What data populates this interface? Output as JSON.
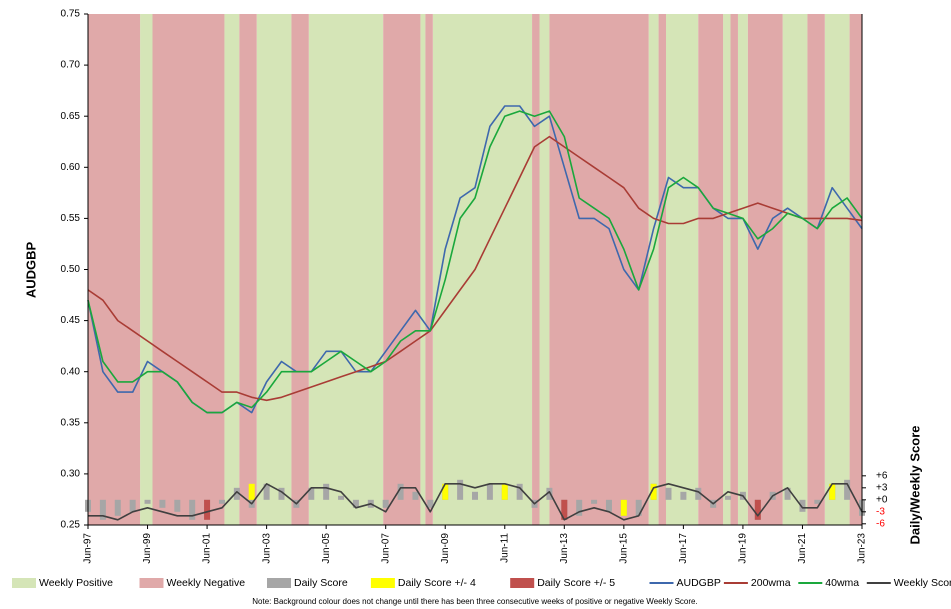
{
  "chart_data": {
    "type": "line",
    "y_label": "AUDGBP",
    "y2_label": "Daily/Weekly Score",
    "note": "Note: Background colour does not change until there has been three consecutive weeks of positive or negative Weekly Score.",
    "xlim": [
      "1997-06",
      "2023-06"
    ],
    "xticks": [
      {
        "value": "1997-06",
        "label": "Jun-97"
      },
      {
        "value": "1999-06",
        "label": "Jun-99"
      },
      {
        "value": "2001-06",
        "label": "Jun-01"
      },
      {
        "value": "2003-06",
        "label": "Jun-03"
      },
      {
        "value": "2005-06",
        "label": "Jun-05"
      },
      {
        "value": "2007-06",
        "label": "Jun-07"
      },
      {
        "value": "2009-06",
        "label": "Jun-09"
      },
      {
        "value": "2011-06",
        "label": "Jun-11"
      },
      {
        "value": "2013-06",
        "label": "Jun-13"
      },
      {
        "value": "2015-06",
        "label": "Jun-15"
      },
      {
        "value": "2017-06",
        "label": "Jun-17"
      },
      {
        "value": "2019-06",
        "label": "Jun-19"
      },
      {
        "value": "2021-06",
        "label": "Jun-21"
      },
      {
        "value": "2023-06",
        "label": "Jun-23"
      }
    ],
    "ylim": [
      0.25,
      0.75
    ],
    "yticks": [
      0.25,
      {
        "value": 0.3,
        "label": "0.30"
      },
      0.35,
      {
        "value": 0.4,
        "label": "0.40"
      },
      0.45,
      {
        "value": 0.5,
        "label": "0.50"
      },
      0.55,
      {
        "value": 0.6,
        "label": "0.60"
      },
      0.65,
      {
        "value": 0.7,
        "label": "0.70"
      },
      0.75
    ],
    "y2lim": [
      -6.3,
      121.5
    ],
    "y2ticks": [
      {
        "value": 6,
        "label": "+6"
      },
      {
        "value": 3,
        "label": "+3"
      },
      {
        "value": 0,
        "label": "+0"
      },
      -3,
      -6
    ],
    "y2_negative_color": "#ff0000",
    "grid": false,
    "bands": [
      {
        "name": "Weekly Positive",
        "color": "#d5e5b7",
        "ranges": [
          [
            "1999-03",
            "1999-08"
          ],
          [
            "2002-01",
            "2002-07"
          ],
          [
            "2003-02",
            "2004-04"
          ],
          [
            "2004-11",
            "2007-05"
          ],
          [
            "2008-08",
            "2008-10"
          ],
          [
            "2009-01",
            "2012-05"
          ],
          [
            "2012-08",
            "2012-12"
          ],
          [
            "2016-04",
            "2016-08"
          ],
          [
            "2016-11",
            "2017-12"
          ],
          [
            "2018-10",
            "2019-01"
          ],
          [
            "2019-04",
            "2019-08"
          ],
          [
            "2020-10",
            "2021-08"
          ],
          [
            "2022-03",
            "2023-01"
          ]
        ]
      },
      {
        "name": "Weekly Negative",
        "color": "#e0a9a9",
        "ranges": [
          [
            "1997-06",
            "1999-03"
          ],
          [
            "1999-08",
            "2002-01"
          ],
          [
            "2002-07",
            "2003-02"
          ],
          [
            "2004-04",
            "2004-11"
          ],
          [
            "2007-05",
            "2008-08"
          ],
          [
            "2008-10",
            "2009-01"
          ],
          [
            "2012-05",
            "2012-08"
          ],
          [
            "2012-12",
            "2016-04"
          ],
          [
            "2016-08",
            "2016-11"
          ],
          [
            "2017-12",
            "2018-10"
          ],
          [
            "2019-01",
            "2019-04"
          ],
          [
            "2019-08",
            "2020-10"
          ],
          [
            "2021-08",
            "2022-03"
          ],
          [
            "2023-01",
            "2023-06"
          ]
        ]
      }
    ],
    "x": [
      "1997-06",
      "1997-12",
      "1998-06",
      "1998-12",
      "1999-06",
      "1999-12",
      "2000-06",
      "2000-12",
      "2001-06",
      "2001-12",
      "2002-06",
      "2002-12",
      "2003-06",
      "2003-12",
      "2004-06",
      "2004-12",
      "2005-06",
      "2005-12",
      "2006-06",
      "2006-12",
      "2007-06",
      "2007-12",
      "2008-06",
      "2008-12",
      "2009-06",
      "2009-12",
      "2010-06",
      "2010-12",
      "2011-06",
      "2011-12",
      "2012-06",
      "2012-12",
      "2013-06",
      "2013-12",
      "2014-06",
      "2014-12",
      "2015-06",
      "2015-12",
      "2016-06",
      "2016-12",
      "2017-06",
      "2017-12",
      "2018-06",
      "2018-12",
      "2019-06",
      "2019-12",
      "2020-06",
      "2020-12",
      "2021-06",
      "2021-12",
      "2022-06",
      "2022-12",
      "2023-06"
    ],
    "series": [
      {
        "name": "Daily Score",
        "kind": "bar",
        "axis": "y2",
        "color": "#a6a6a6",
        "values": [
          -3,
          -5,
          -4,
          -3,
          -1,
          -2,
          -3,
          -5,
          -4,
          -1,
          3,
          -2,
          4,
          3,
          -2,
          3,
          4,
          1,
          -2,
          -2,
          -2,
          4,
          2,
          -2,
          4,
          5,
          2,
          4,
          3,
          4,
          -2,
          3,
          -5,
          -4,
          -1,
          -3,
          -4,
          -4,
          4,
          3,
          2,
          3,
          -2,
          1,
          2,
          -5,
          2,
          3,
          -3,
          -1,
          4,
          5,
          -4
        ]
      },
      {
        "name": "Daily Score +/- 4",
        "kind": "bar",
        "axis": "y2",
        "color": "#ffff00",
        "values": [
          null,
          null,
          null,
          null,
          null,
          null,
          null,
          null,
          null,
          null,
          null,
          4,
          null,
          null,
          null,
          null,
          null,
          null,
          null,
          null,
          null,
          null,
          null,
          null,
          4,
          null,
          null,
          null,
          4,
          null,
          null,
          null,
          null,
          null,
          null,
          null,
          -4,
          null,
          4,
          null,
          null,
          null,
          null,
          null,
          null,
          null,
          null,
          null,
          null,
          null,
          4,
          null,
          null
        ]
      },
      {
        "name": "Daily Score +/- 5",
        "kind": "bar",
        "axis": "y2",
        "color": "#c0504d",
        "values": [
          null,
          null,
          null,
          null,
          null,
          null,
          null,
          null,
          -5,
          null,
          null,
          null,
          null,
          null,
          null,
          null,
          null,
          null,
          null,
          null,
          null,
          null,
          null,
          null,
          null,
          null,
          null,
          null,
          null,
          null,
          null,
          null,
          -5,
          null,
          null,
          null,
          null,
          null,
          null,
          null,
          null,
          null,
          null,
          null,
          null,
          -5,
          null,
          null,
          null,
          null,
          null,
          null,
          null
        ]
      },
      {
        "name": "AUDGBP",
        "kind": "line",
        "color": "#3e68ad",
        "width": 1.6,
        "values": [
          0.47,
          0.4,
          0.38,
          0.38,
          0.41,
          0.4,
          0.39,
          0.37,
          0.36,
          0.36,
          0.37,
          0.36,
          0.39,
          0.41,
          0.4,
          0.4,
          0.42,
          0.42,
          0.4,
          0.4,
          0.42,
          0.44,
          0.46,
          0.44,
          0.52,
          0.57,
          0.58,
          0.64,
          0.66,
          0.66,
          0.64,
          0.65,
          0.6,
          0.55,
          0.55,
          0.54,
          0.5,
          0.48,
          0.54,
          0.59,
          0.58,
          0.58,
          0.56,
          0.55,
          0.55,
          0.52,
          0.55,
          0.56,
          0.55,
          0.54,
          0.58,
          0.56,
          0.54
        ]
      },
      {
        "name": "200wma",
        "kind": "line",
        "color": "#a93c35",
        "width": 1.6,
        "values": [
          0.48,
          0.47,
          0.45,
          0.44,
          0.43,
          0.42,
          0.41,
          0.4,
          0.39,
          0.38,
          0.38,
          0.375,
          0.372,
          0.375,
          0.38,
          0.385,
          0.39,
          0.395,
          0.4,
          0.405,
          0.41,
          0.42,
          0.43,
          0.44,
          0.46,
          0.48,
          0.5,
          0.53,
          0.56,
          0.59,
          0.62,
          0.63,
          0.62,
          0.61,
          0.6,
          0.59,
          0.58,
          0.56,
          0.55,
          0.545,
          0.545,
          0.55,
          0.55,
          0.555,
          0.56,
          0.565,
          0.56,
          0.555,
          0.55,
          0.55,
          0.55,
          0.55,
          0.548
        ]
      },
      {
        "name": "40wma",
        "kind": "line",
        "color": "#1aa83c",
        "width": 1.6,
        "values": [
          0.47,
          0.41,
          0.39,
          0.39,
          0.4,
          0.4,
          0.39,
          0.37,
          0.36,
          0.36,
          0.37,
          0.365,
          0.38,
          0.4,
          0.4,
          0.4,
          0.41,
          0.42,
          0.41,
          0.4,
          0.41,
          0.43,
          0.44,
          0.44,
          0.49,
          0.55,
          0.57,
          0.62,
          0.65,
          0.655,
          0.65,
          0.655,
          0.63,
          0.57,
          0.56,
          0.55,
          0.52,
          0.48,
          0.52,
          0.58,
          0.59,
          0.58,
          0.56,
          0.555,
          0.55,
          0.53,
          0.54,
          0.555,
          0.55,
          0.54,
          0.56,
          0.57,
          0.55
        ]
      },
      {
        "name": "Weekly Score",
        "kind": "line",
        "axis": "y2",
        "color": "#404040",
        "width": 1.6,
        "values": [
          -4,
          -4,
          -5,
          -3,
          -2,
          -3,
          -4,
          -4,
          -3,
          -2,
          2,
          -1,
          4,
          2,
          -1,
          3,
          3,
          2,
          -2,
          -1,
          -3,
          3,
          3,
          -3,
          4,
          4,
          3,
          4,
          4,
          3,
          -1,
          2,
          -5,
          -3,
          -2,
          -3,
          -5,
          -4,
          3,
          4,
          3,
          2,
          -1,
          2,
          1,
          -4,
          1,
          3,
          -2,
          -2,
          4,
          4,
          -3
        ]
      }
    ]
  }
}
